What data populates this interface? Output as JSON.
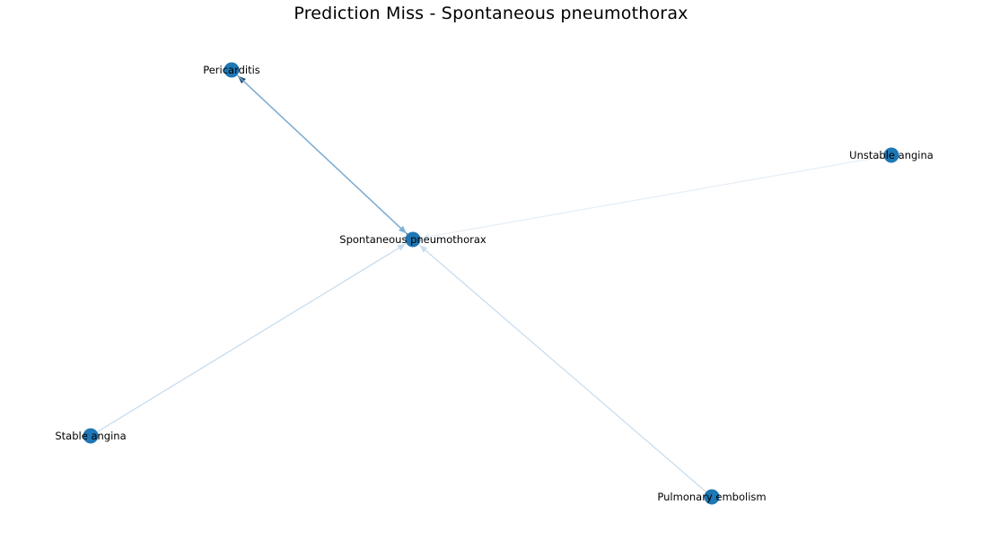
{
  "title": "Prediction Miss - Spontaneous pneumothorax",
  "graph": {
    "node_color": "#1f77b4",
    "nodes": [
      {
        "id": "pericarditis",
        "label": "Pericarditis"
      },
      {
        "id": "spontaneous_pneumothorax",
        "label": "Spontaneous pneumothorax"
      },
      {
        "id": "unstable_angina",
        "label": "Unstable angina"
      },
      {
        "id": "stable_angina",
        "label": "Stable angina"
      },
      {
        "id": "pulmonary_embolism",
        "label": "Pulmonary embolism"
      }
    ],
    "edges": [
      {
        "from": "spontaneous_pneumothorax",
        "to": "pericarditis",
        "color": "#1f4e79"
      },
      {
        "from": "pericarditis",
        "to": "spontaneous_pneumothorax",
        "color": "#7fb2d9"
      },
      {
        "from": "unstable_angina",
        "to": "spontaneous_pneumothorax",
        "color": "#e6eff7"
      },
      {
        "from": "stable_angina",
        "to": "spontaneous_pneumothorax",
        "color": "#c9ddee"
      },
      {
        "from": "pulmonary_embolism",
        "to": "spontaneous_pneumothorax",
        "color": "#c9ddee"
      }
    ]
  }
}
